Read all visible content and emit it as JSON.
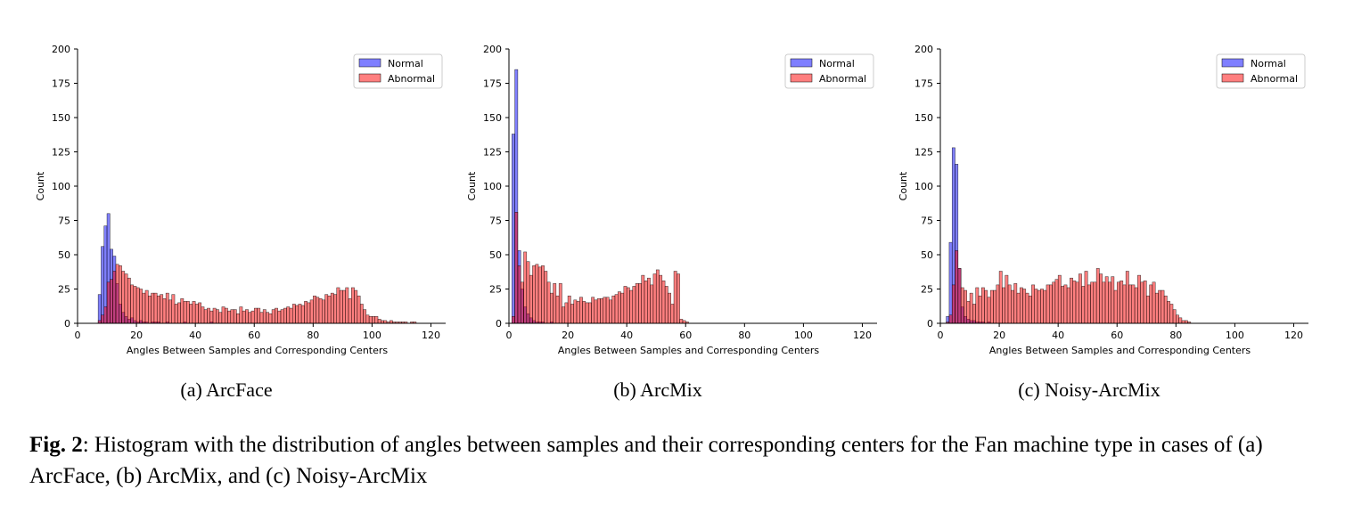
{
  "chart_data": [
    {
      "type": "histogram",
      "subcaption": "(a) ArcFace",
      "xlabel": "Angles Between Samples and Corresponding Centers",
      "ylabel": "Count",
      "xlim": [
        0,
        125
      ],
      "ylim": [
        0,
        200
      ],
      "xticks": [
        0,
        20,
        40,
        60,
        80,
        100,
        120
      ],
      "yticks": [
        0,
        25,
        50,
        75,
        100,
        125,
        150,
        175,
        200
      ],
      "legend_position": "top-right",
      "bin_start": 7,
      "bin_width": 1,
      "series": [
        {
          "name": "Normal",
          "color": "#0000ff",
          "values": [
            21,
            56,
            71,
            80,
            54,
            49,
            29,
            14,
            8,
            5,
            3,
            4,
            2,
            1,
            2,
            1,
            1,
            0,
            1,
            1,
            1,
            0,
            0,
            1,
            0,
            0,
            0,
            0,
            0,
            1,
            0,
            0,
            0,
            0,
            0,
            0,
            0,
            0,
            1
          ]
        },
        {
          "name": "Abnormal",
          "color": "#ff0000",
          "values": [
            2,
            6,
            12,
            30,
            32,
            38,
            43,
            42,
            38,
            36,
            33,
            28,
            27,
            26,
            25,
            22,
            24,
            20,
            22,
            22,
            20,
            21,
            18,
            22,
            17,
            21,
            14,
            15,
            18,
            16,
            16,
            14,
            16,
            14,
            15,
            12,
            10,
            11,
            9,
            11,
            10,
            8,
            12,
            11,
            9,
            10,
            10,
            7,
            12,
            9,
            10,
            8,
            9,
            11,
            11,
            8,
            10,
            8,
            7,
            10,
            11,
            9,
            10,
            11,
            12,
            11,
            14,
            13,
            14,
            13,
            16,
            15,
            17,
            20,
            19,
            18,
            17,
            21,
            20,
            22,
            21,
            26,
            24,
            24,
            26,
            18,
            26,
            24,
            20,
            14,
            10,
            6,
            5,
            5,
            5,
            3,
            2,
            2,
            1,
            2,
            1,
            1,
            1,
            1,
            1,
            0,
            1,
            1
          ]
        }
      ]
    },
    {
      "type": "histogram",
      "subcaption": "(b) ArcMix",
      "xlabel": "Angles Between Samples and Corresponding Centers",
      "ylabel": "Count",
      "xlim": [
        0,
        125
      ],
      "ylim": [
        0,
        200
      ],
      "xticks": [
        0,
        20,
        40,
        60,
        80,
        100,
        120
      ],
      "yticks": [
        0,
        25,
        50,
        75,
        100,
        125,
        150,
        175,
        200
      ],
      "legend_position": "top-right",
      "bin_start": 1,
      "bin_width": 1,
      "series": [
        {
          "name": "Normal",
          "color": "#0000ff",
          "values": [
            138,
            185,
            53,
            25,
            12,
            7,
            4,
            2,
            1,
            1,
            1,
            0,
            0,
            1
          ]
        },
        {
          "name": "Abnormal",
          "color": "#ff0000",
          "values": [
            5,
            81,
            42,
            30,
            52,
            45,
            35,
            42,
            43,
            41,
            42,
            38,
            30,
            22,
            29,
            20,
            29,
            12,
            15,
            20,
            14,
            17,
            16,
            19,
            16,
            15,
            15,
            19,
            17,
            18,
            18,
            19,
            19,
            17,
            20,
            21,
            23,
            22,
            27,
            26,
            24,
            27,
            29,
            29,
            35,
            31,
            33,
            28,
            36,
            39,
            35,
            31,
            27,
            22,
            14,
            38,
            36,
            3,
            2,
            1
          ]
        }
      ]
    },
    {
      "type": "histogram",
      "subcaption": "(c) Noisy-ArcMix",
      "xlabel": "Angles Between Samples and Corresponding Centers",
      "ylabel": "Count",
      "xlim": [
        0,
        125
      ],
      "ylim": [
        0,
        200
      ],
      "xticks": [
        0,
        20,
        40,
        60,
        80,
        100,
        120
      ],
      "yticks": [
        0,
        25,
        50,
        75,
        100,
        125,
        150,
        175,
        200
      ],
      "legend_position": "top-right",
      "bin_start": 2,
      "bin_width": 1,
      "series": [
        {
          "name": "Normal",
          "color": "#0000ff",
          "values": [
            5,
            59,
            128,
            116,
            40,
            12,
            5,
            3,
            2,
            2,
            1,
            1,
            1,
            0,
            1
          ]
        },
        {
          "name": "Abnormal",
          "color": "#ff0000",
          "values": [
            1,
            6,
            28,
            53,
            40,
            26,
            24,
            16,
            22,
            14,
            26,
            20,
            26,
            24,
            19,
            24,
            24,
            28,
            38,
            26,
            35,
            28,
            24,
            29,
            22,
            26,
            25,
            22,
            20,
            28,
            25,
            24,
            25,
            24,
            28,
            28,
            30,
            32,
            35,
            27,
            28,
            26,
            33,
            31,
            30,
            36,
            27,
            38,
            28,
            30,
            30,
            40,
            36,
            30,
            34,
            30,
            34,
            24,
            30,
            31,
            28,
            38,
            28,
            28,
            26,
            35,
            30,
            31,
            20,
            28,
            30,
            22,
            24,
            24,
            20,
            16,
            14,
            10,
            6,
            4,
            2,
            2,
            1
          ]
        }
      ]
    }
  ],
  "caption": {
    "fig_label": "Fig. 2",
    "text": ": Histogram with the distribution of angles between samples and their corresponding centers for the Fan machine type in cases of (a) ArcFace, (b) ArcMix, and (c) Noisy-ArcMix"
  }
}
